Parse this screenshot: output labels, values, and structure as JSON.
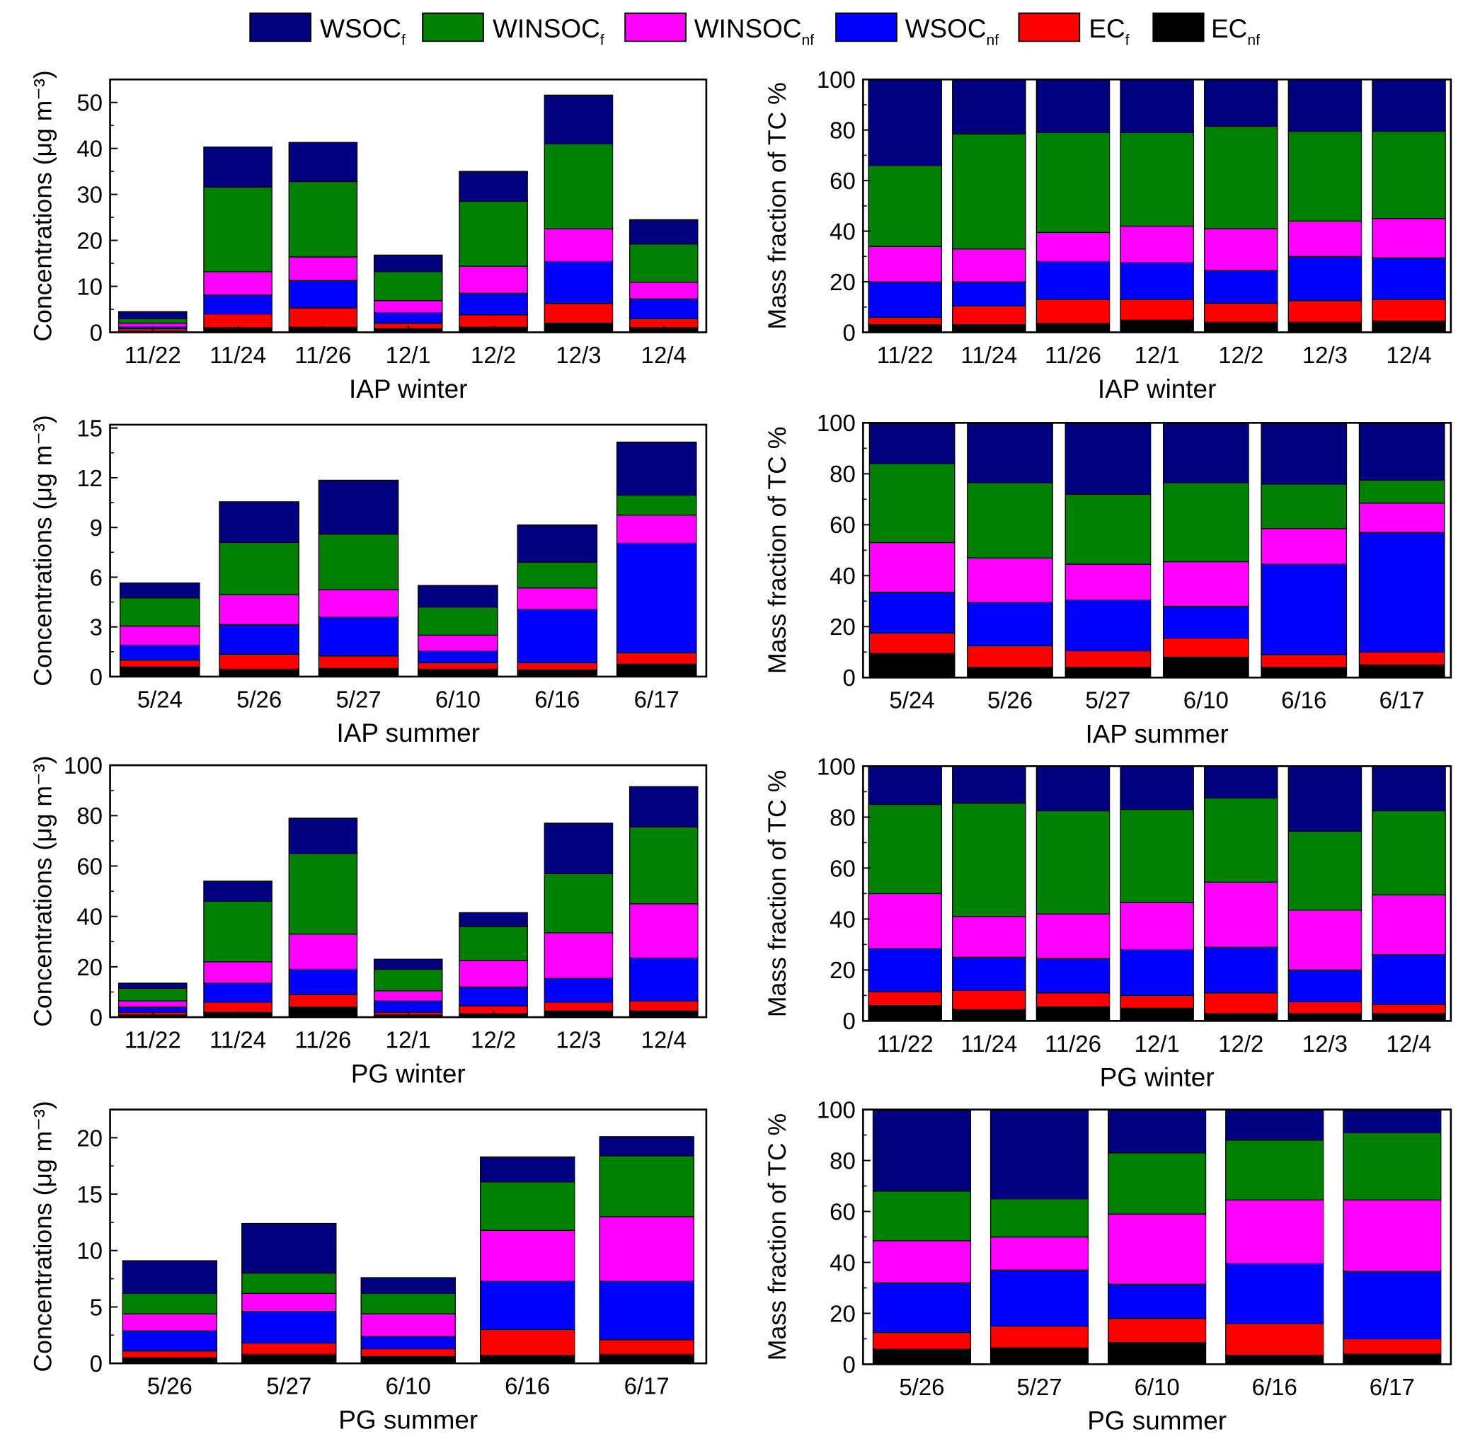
{
  "legend": {
    "items": [
      {
        "main": "WSOC",
        "sub": "f",
        "color": "#000080"
      },
      {
        "main": "WINSOC",
        "sub": "f",
        "color": "#008000"
      },
      {
        "main": "WINSOC",
        "sub": "nf",
        "color": "#ff00ff"
      },
      {
        "main": "WSOC",
        "sub": "nf",
        "color": "#0000ff"
      },
      {
        "main": "EC",
        "sub": "f",
        "color": "#ff0000"
      },
      {
        "main": "EC",
        "sub": "nf",
        "color": "#000000"
      }
    ]
  },
  "chart_data": [
    {
      "type": "bar",
      "stacked": true,
      "title": "IAP winter",
      "ylabel": "Concentrations (μg m⁻³)",
      "ylim": [
        0,
        55
      ],
      "yticks": [
        0,
        10,
        20,
        30,
        40,
        50
      ],
      "stack_order_bottom_to_top": [
        "EC_nf",
        "EC_f",
        "WSOC_nf",
        "WINSOC_nf",
        "WINSOC_f",
        "WSOC_f"
      ],
      "categories": [
        "11/22",
        "11/24",
        "11/26",
        "12/1",
        "12/2",
        "12/3",
        "12/4"
      ],
      "cumulative": [
        [
          0.3,
          0.8,
          1.2,
          2.0,
          3.0,
          4.5
        ],
        [
          1.0,
          4.0,
          8.1,
          13.2,
          31.6,
          40.3
        ],
        [
          1.2,
          5.3,
          11.3,
          16.4,
          32.8,
          41.3
        ],
        [
          0.8,
          2.0,
          4.3,
          6.9,
          13.2,
          16.8
        ],
        [
          1.2,
          3.8,
          8.5,
          14.4,
          28.5,
          35.0
        ],
        [
          2.0,
          6.3,
          15.4,
          22.5,
          41.0,
          51.6
        ],
        [
          1.0,
          3.0,
          7.3,
          10.9,
          19.2,
          24.5
        ]
      ]
    },
    {
      "type": "bar",
      "stacked": true,
      "title": "IAP winter",
      "ylabel": "Mass fraction of TC %",
      "ylim": [
        0,
        100
      ],
      "yticks": [
        0,
        20,
        40,
        60,
        80,
        100
      ],
      "stack_order_bottom_to_top": [
        "EC_nf",
        "EC_f",
        "WSOC_nf",
        "WINSOC_nf",
        "WINSOC_f",
        "WSOC_f"
      ],
      "categories": [
        "11/22",
        "11/24",
        "11/26",
        "12/1",
        "12/2",
        "12/3",
        "12/4"
      ],
      "cumulative": [
        [
          3,
          6,
          20,
          34,
          66,
          100
        ],
        [
          3,
          10.5,
          20,
          33,
          78.5,
          100
        ],
        [
          3.5,
          13,
          28,
          39.5,
          79,
          100
        ],
        [
          5,
          13,
          27.5,
          42,
          79,
          100
        ],
        [
          4,
          11.5,
          24.5,
          41,
          81.5,
          100
        ],
        [
          4,
          12.5,
          30,
          44,
          79.5,
          100
        ],
        [
          4.5,
          13,
          29.5,
          45,
          79.5,
          100
        ]
      ]
    },
    {
      "type": "bar",
      "stacked": true,
      "title": "IAP summer",
      "ylabel": "Concentrations (μg m⁻³)",
      "ylim": [
        0,
        15.2
      ],
      "yticks": [
        0,
        3,
        6,
        9,
        12,
        15
      ],
      "stack_order_bottom_to_top": [
        "EC_nf",
        "EC_f",
        "WSOC_nf",
        "WINSOC_nf",
        "WINSOC_f",
        "WSOC_f"
      ],
      "categories": [
        "5/24",
        "5/26",
        "5/27",
        "6/10",
        "6/16",
        "6/17"
      ],
      "cumulative": [
        [
          0.6,
          1.0,
          1.9,
          3.05,
          4.75,
          5.65
        ],
        [
          0.45,
          1.35,
          3.15,
          4.95,
          8.1,
          10.55
        ],
        [
          0.5,
          1.25,
          3.6,
          5.25,
          8.6,
          11.85
        ],
        [
          0.45,
          0.85,
          1.55,
          2.5,
          4.2,
          5.5
        ],
        [
          0.4,
          0.85,
          4.05,
          5.35,
          6.9,
          9.15
        ],
        [
          0.75,
          1.45,
          8.05,
          9.75,
          10.95,
          14.15
        ]
      ]
    },
    {
      "type": "bar",
      "stacked": true,
      "title": "IAP summer",
      "ylabel": "Mass fraction of TC %",
      "ylim": [
        0,
        100
      ],
      "yticks": [
        0,
        20,
        40,
        60,
        80,
        100
      ],
      "stack_order_bottom_to_top": [
        "EC_nf",
        "EC_f",
        "WSOC_nf",
        "WINSOC_nf",
        "WINSOC_f",
        "WSOC_f"
      ],
      "categories": [
        "5/24",
        "5/26",
        "5/27",
        "6/10",
        "6/16",
        "6/17"
      ],
      "cumulative": [
        [
          9.5,
          17.5,
          33.5,
          53,
          84,
          100
        ],
        [
          4,
          12.5,
          29.5,
          47,
          76.5,
          100
        ],
        [
          4,
          10.5,
          30.5,
          44.5,
          72,
          100
        ],
        [
          8,
          15.5,
          28,
          45.5,
          76.5,
          100
        ],
        [
          4,
          9,
          44.5,
          58.5,
          76,
          100
        ],
        [
          5,
          10,
          57,
          68.5,
          77.5,
          100
        ]
      ]
    },
    {
      "type": "bar",
      "stacked": true,
      "title": "PG winter",
      "ylabel": "Concentrations (μg m⁻³)",
      "ylim": [
        0,
        100
      ],
      "yticks": [
        0,
        20,
        40,
        60,
        80,
        100
      ],
      "stack_order_bottom_to_top": [
        "EC_nf",
        "EC_f",
        "WSOC_nf",
        "WINSOC_nf",
        "WINSOC_f",
        "WSOC_f"
      ],
      "categories": [
        "11/22",
        "11/24",
        "11/26",
        "12/1",
        "12/2",
        "12/3",
        "12/4"
      ],
      "cumulative": [
        [
          1,
          2,
          4,
          6.5,
          11.5,
          13.5
        ],
        [
          2,
          6,
          13.5,
          22,
          46,
          54
        ],
        [
          4,
          9,
          19,
          33,
          65,
          79
        ],
        [
          1,
          2,
          6.5,
          10.5,
          19,
          23
        ],
        [
          1.5,
          4.5,
          12,
          22.5,
          36,
          41.5
        ],
        [
          2.5,
          6,
          15.5,
          33.5,
          57,
          77
        ],
        [
          2.5,
          6.5,
          23.5,
          45,
          75.5,
          91.5
        ]
      ]
    },
    {
      "type": "bar",
      "stacked": true,
      "title": "PG winter",
      "ylabel": "Mass fraction of TC %",
      "ylim": [
        0,
        100
      ],
      "yticks": [
        0,
        20,
        40,
        60,
        80,
        100
      ],
      "stack_order_bottom_to_top": [
        "EC_nf",
        "EC_f",
        "WSOC_nf",
        "WINSOC_nf",
        "WINSOC_f",
        "WSOC_f"
      ],
      "categories": [
        "11/22",
        "11/24",
        "11/26",
        "12/1",
        "12/2",
        "12/3",
        "12/4"
      ],
      "cumulative": [
        [
          6,
          11.5,
          28.5,
          50,
          85,
          100
        ],
        [
          4.5,
          12,
          25,
          41,
          85.5,
          100
        ],
        [
          5.5,
          11,
          24.5,
          42,
          82.5,
          100
        ],
        [
          5,
          10,
          28,
          46.5,
          83,
          100
        ],
        [
          3,
          11,
          29,
          54.5,
          87.5,
          100
        ],
        [
          3,
          7.5,
          20,
          43.5,
          74.5,
          100
        ],
        [
          3,
          6.5,
          26,
          49.5,
          82.5,
          100
        ]
      ]
    },
    {
      "type": "bar",
      "stacked": true,
      "title": "PG summer",
      "ylabel": "Concentrations (μg m⁻³)",
      "ylim": [
        0,
        22.5
      ],
      "yticks": [
        0,
        5,
        10,
        15,
        20
      ],
      "stack_order_bottom_to_top": [
        "EC_nf",
        "EC_f",
        "WSOC_nf",
        "WINSOC_nf",
        "WINSOC_f",
        "WSOC_f"
      ],
      "categories": [
        "5/26",
        "5/27",
        "6/10",
        "6/16",
        "6/17"
      ],
      "cumulative": [
        [
          0.5,
          1.1,
          2.9,
          4.4,
          6.2,
          9.1
        ],
        [
          0.8,
          1.8,
          4.6,
          6.2,
          8.0,
          12.4
        ],
        [
          0.6,
          1.3,
          2.4,
          4.4,
          6.2,
          7.6
        ],
        [
          0.7,
          3.0,
          7.3,
          11.8,
          16.1,
          18.3
        ],
        [
          0.8,
          2.1,
          7.3,
          13.0,
          18.4,
          20.1
        ]
      ]
    },
    {
      "type": "bar",
      "stacked": true,
      "title": "PG summer",
      "ylabel": "Mass fraction of TC %",
      "ylim": [
        0,
        100
      ],
      "yticks": [
        0,
        20,
        40,
        60,
        80,
        100
      ],
      "stack_order_bottom_to_top": [
        "EC_nf",
        "EC_f",
        "WSOC_nf",
        "WINSOC_nf",
        "WINSOC_f",
        "WSOC_f"
      ],
      "categories": [
        "5/26",
        "5/27",
        "6/10",
        "6/16",
        "6/17"
      ],
      "cumulative": [
        [
          6,
          12.5,
          32,
          48.5,
          68,
          100
        ],
        [
          6.5,
          15,
          37,
          50,
          65,
          100
        ],
        [
          8.5,
          18,
          31.5,
          59,
          83,
          100
        ],
        [
          3.5,
          16,
          39.5,
          64.5,
          88,
          100
        ],
        [
          4,
          10,
          36.5,
          64.5,
          91,
          99.5
        ]
      ]
    }
  ]
}
